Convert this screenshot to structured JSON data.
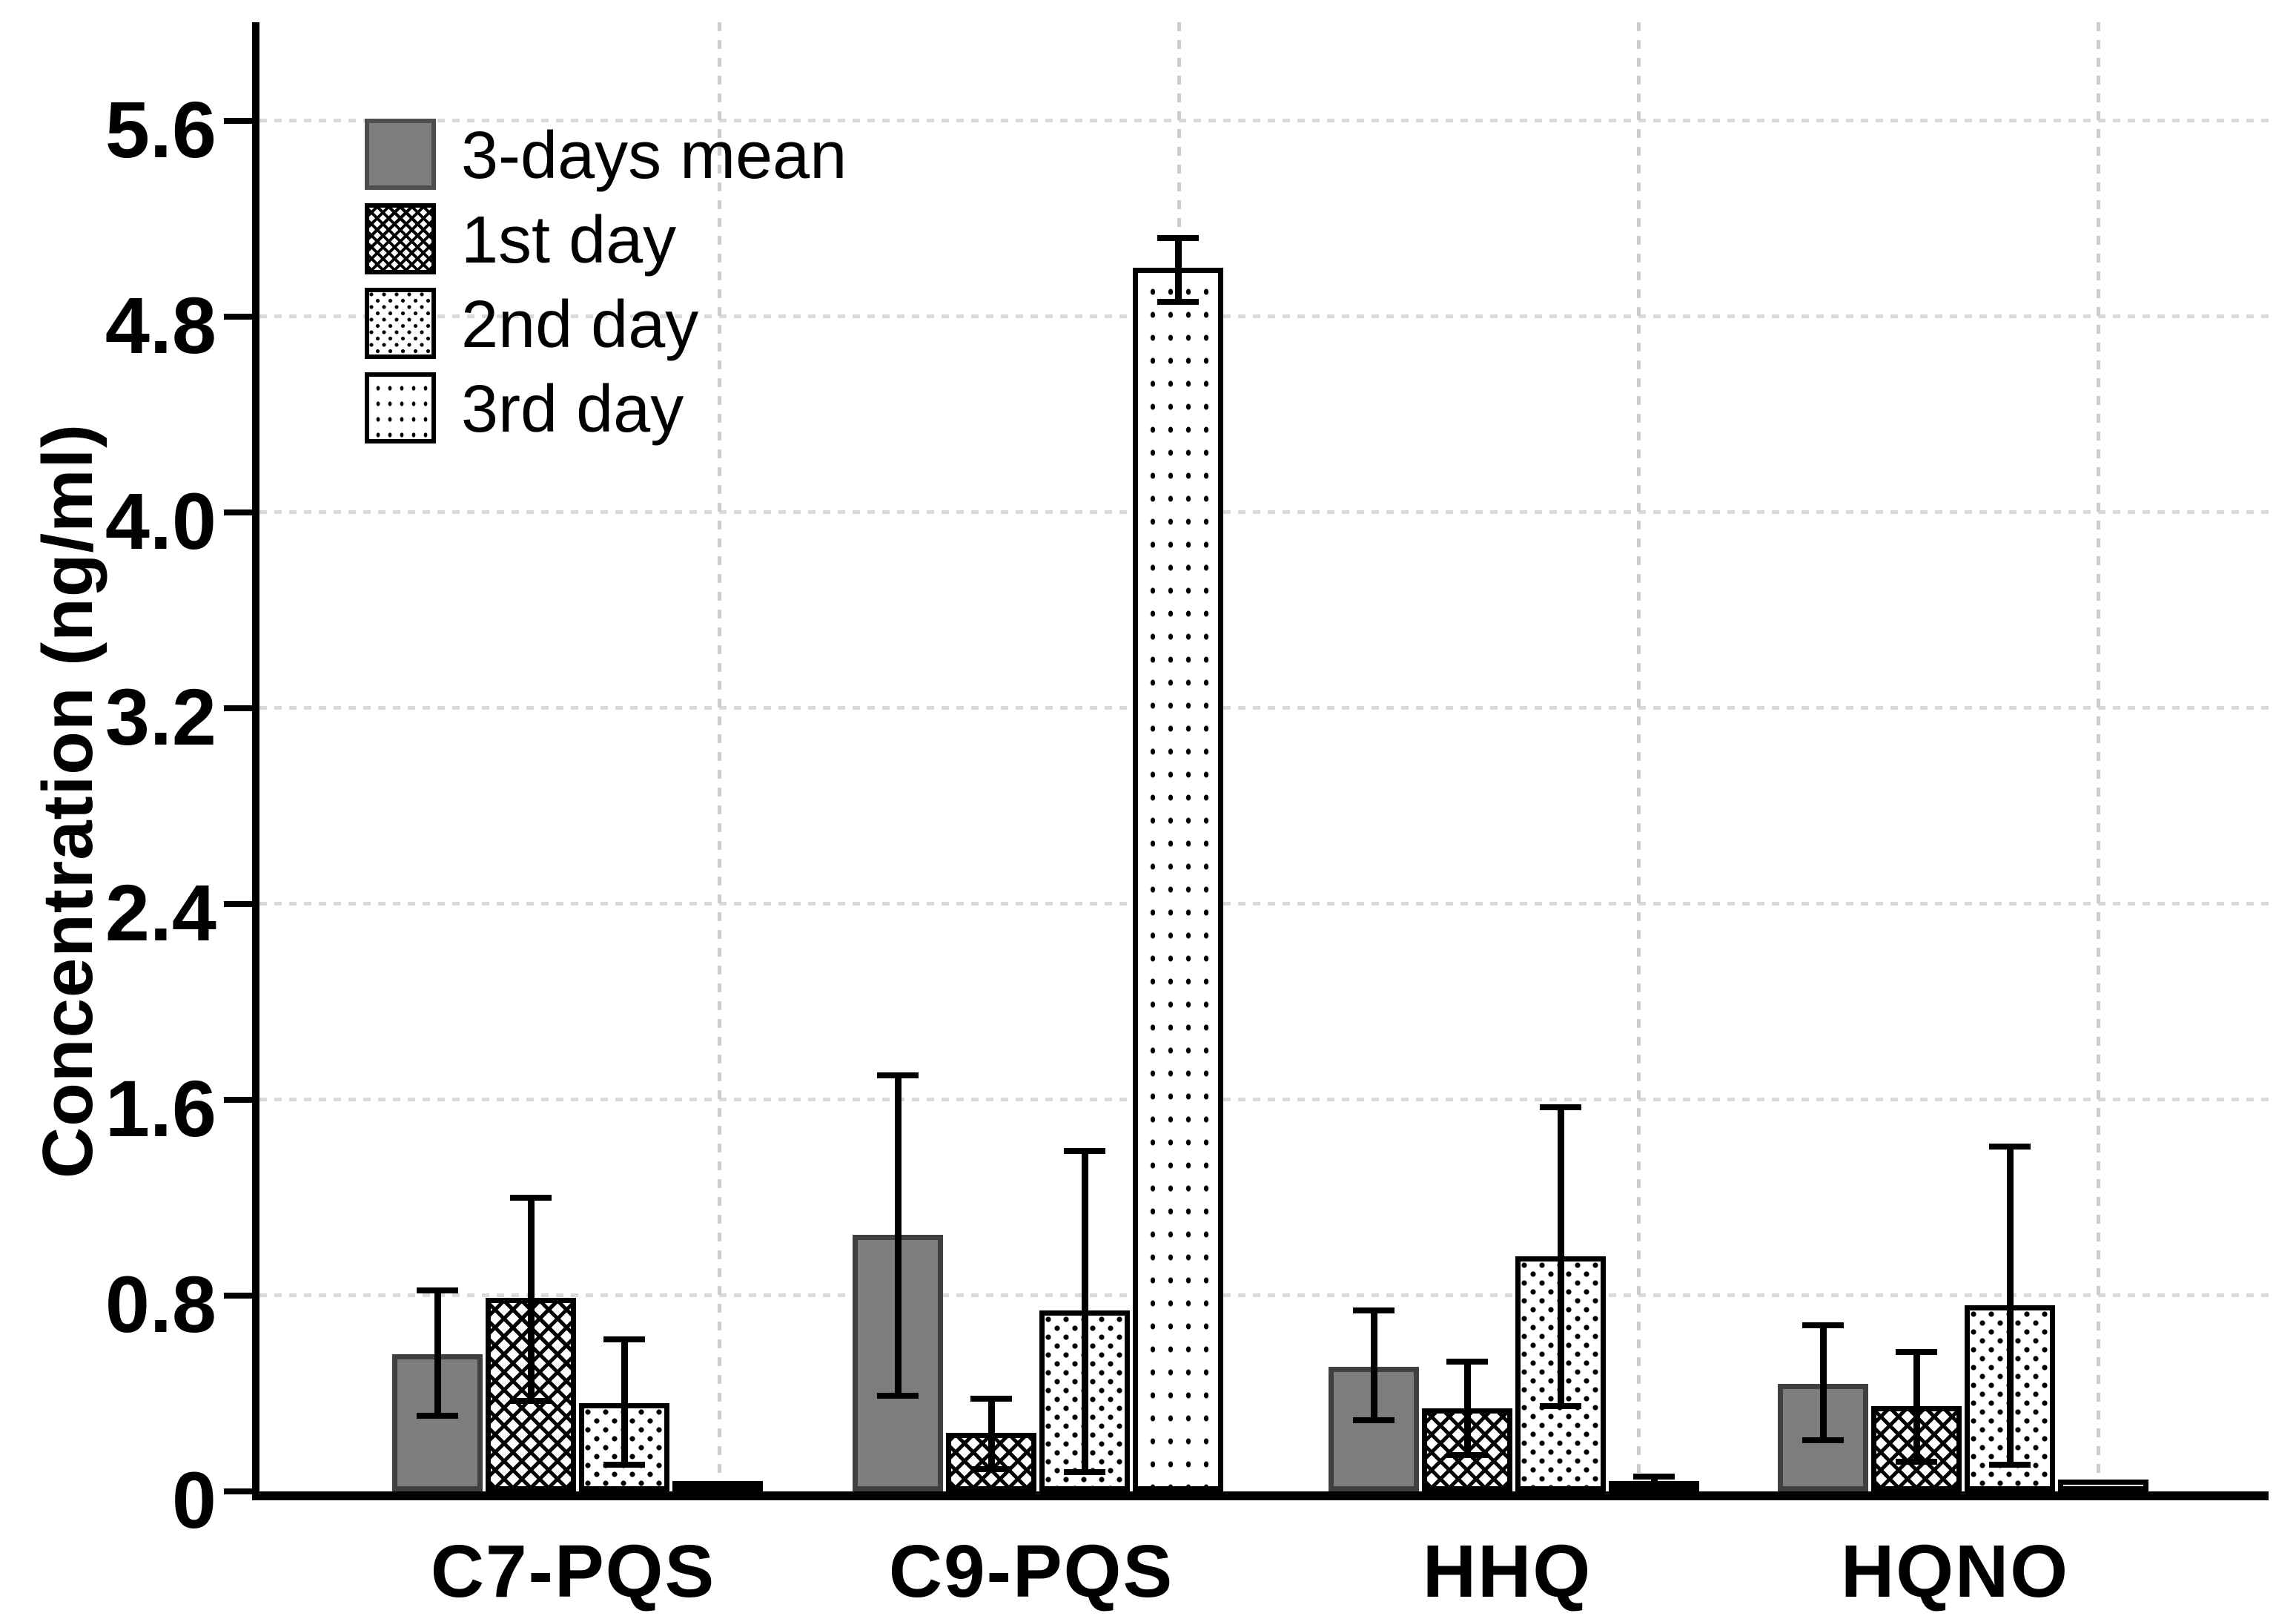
{
  "colors": {
    "background": "#ffffff",
    "bar_gray_fill": "#7d7d7d",
    "bar_gray_border": "#404040",
    "pattern_black": "#000000",
    "gridline_gray": "#d9d9d9",
    "axis_black": "#000000"
  },
  "chart_data": {
    "type": "bar",
    "title": "",
    "xlabel": "",
    "ylabel": "Concentration (ng/ml)",
    "ylim": [
      0,
      6.1
    ],
    "grid": true,
    "legend_position": "top-left",
    "categories": [
      "C7-PQS",
      "C9-PQS",
      "HHQ",
      "HQNO"
    ],
    "y_ticks": [
      {
        "value": 0,
        "label": "0"
      },
      {
        "value": 0.8,
        "label": "0.8"
      },
      {
        "value": 1.6,
        "label": "1.6"
      },
      {
        "value": 2.4,
        "label": "2.4"
      },
      {
        "value": 3.2,
        "label": "3.2"
      },
      {
        "value": 4.0,
        "label": "4.0"
      },
      {
        "value": 4.8,
        "label": "4.8"
      },
      {
        "value": 5.6,
        "label": "5.6"
      }
    ],
    "series": [
      {
        "name": "3-days mean",
        "pattern": "solid-gray",
        "values": [
          0.56,
          1.05,
          0.51,
          0.44
        ],
        "error_low": [
          0.31,
          0.39,
          0.29,
          0.21
        ],
        "error_high": [
          0.82,
          1.7,
          0.74,
          0.68
        ]
      },
      {
        "name": "1st day",
        "pattern": "diagonal-crosshatch",
        "values": [
          0.79,
          0.24,
          0.34,
          0.35
        ],
        "error_low": [
          0.37,
          0.09,
          0.15,
          0.12
        ],
        "error_high": [
          1.2,
          0.38,
          0.53,
          0.57
        ]
      },
      {
        "name": "2nd day",
        "pattern": "dense-dots",
        "values": [
          0.36,
          0.74,
          0.96,
          0.76
        ],
        "error_low": [
          0.11,
          0.08,
          0.35,
          0.11
        ],
        "error_high": [
          0.62,
          1.39,
          1.57,
          1.41
        ]
      },
      {
        "name": "3rd day",
        "pattern": "sparse-dots",
        "values": [
          0.02,
          5.0,
          0.04,
          0.05
        ],
        "error_low": [
          null,
          4.86,
          0.02,
          null
        ],
        "error_high": [
          null,
          5.12,
          0.06,
          null
        ]
      }
    ]
  }
}
